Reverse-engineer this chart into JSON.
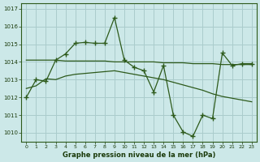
{
  "line1_x": [
    0,
    1,
    2,
    3,
    4,
    5,
    6,
    7,
    8,
    9,
    10,
    11,
    12,
    13,
    14,
    15,
    16,
    17,
    18,
    19,
    20,
    21,
    22,
    23
  ],
  "line1_y": [
    1012.0,
    1013.0,
    1012.9,
    1014.1,
    1014.45,
    1015.05,
    1015.1,
    1015.05,
    1015.05,
    1016.5,
    1014.1,
    1013.7,
    1013.5,
    1012.3,
    1013.8,
    1011.0,
    1010.05,
    1009.8,
    1011.0,
    1010.8,
    1014.5,
    1013.8,
    1013.9,
    1013.9
  ],
  "line2_x": [
    0,
    1,
    2,
    3,
    4,
    5,
    6,
    7,
    8,
    9,
    10,
    11,
    12,
    13,
    14,
    15,
    16,
    17,
    18,
    19,
    20,
    21,
    22,
    23
  ],
  "line2_y": [
    1014.1,
    1014.1,
    1014.1,
    1014.1,
    1014.05,
    1014.05,
    1014.05,
    1014.05,
    1014.05,
    1014.0,
    1014.0,
    1014.0,
    1014.0,
    1014.0,
    1013.95,
    1013.95,
    1013.95,
    1013.9,
    1013.9,
    1013.9,
    1013.85,
    1013.85,
    1013.85,
    1013.85
  ],
  "line3_x": [
    0,
    1,
    2,
    3,
    4,
    5,
    6,
    7,
    8,
    9,
    10,
    11,
    12,
    13,
    14,
    15,
    16,
    17,
    18,
    19,
    20,
    21,
    22,
    23
  ],
  "line3_y": [
    1012.5,
    1012.65,
    1013.05,
    1013.0,
    1013.2,
    1013.3,
    1013.35,
    1013.4,
    1013.45,
    1013.5,
    1013.4,
    1013.3,
    1013.2,
    1013.1,
    1013.0,
    1012.85,
    1012.7,
    1012.55,
    1012.4,
    1012.2,
    1012.05,
    1011.95,
    1011.85,
    1011.75
  ],
  "line_color": "#2d5a1b",
  "bg_color": "#cce8e8",
  "grid_color": "#aacccc",
  "xlabel": "Graphe pression niveau de la mer (hPa)",
  "ylim": [
    1009.5,
    1017.3
  ],
  "yticks": [
    1010,
    1011,
    1012,
    1013,
    1014,
    1015,
    1016,
    1017
  ],
  "xticks": [
    0,
    1,
    2,
    3,
    4,
    5,
    6,
    7,
    8,
    9,
    10,
    11,
    12,
    13,
    14,
    15,
    16,
    17,
    18,
    19,
    20,
    21,
    22,
    23
  ],
  "xlabel_color": "#1a3a0a",
  "tick_color": "#1a3a0a"
}
